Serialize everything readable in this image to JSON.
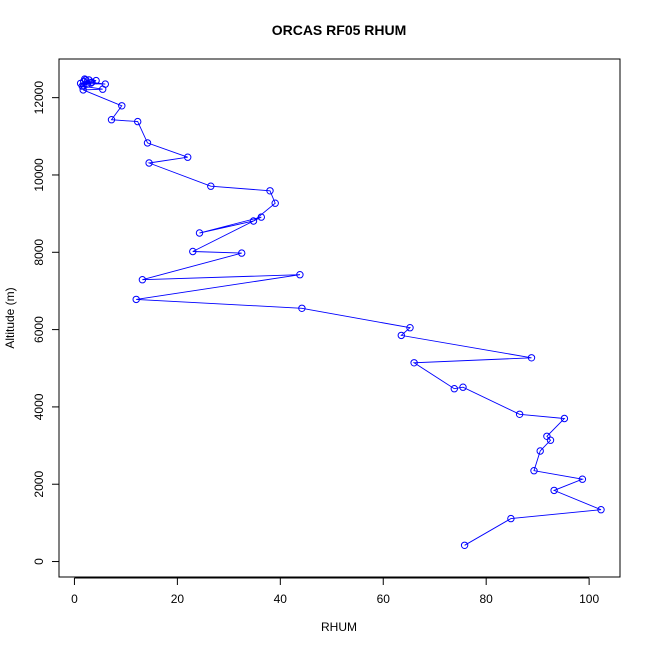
{
  "chart_data": {
    "type": "line",
    "title": "ORCAS RF05 RHUM",
    "xlabel": "RHUM",
    "ylabel": "Altitude (m)",
    "xlim": [
      -3,
      106
    ],
    "ylim": [
      -400,
      13000
    ],
    "xticks": [
      0,
      20,
      40,
      60,
      80,
      100
    ],
    "yticks": [
      0,
      2000,
      4000,
      6000,
      8000,
      10000,
      12000
    ],
    "grid": false,
    "legend": "none",
    "series_color": "#0000ff",
    "x": [
      75.8,
      84.8,
      102.3,
      93.2,
      98.7,
      89.3,
      90.5,
      92.5,
      91.8,
      95.2,
      86.5,
      75.5,
      73.8,
      66.0,
      88.8,
      63.5,
      65.2,
      44.2,
      12.0,
      43.8,
      13.2,
      32.5,
      23.0,
      36.3,
      24.3,
      34.8,
      39.0,
      38.0,
      26.5,
      14.5,
      22.0,
      14.2,
      12.3,
      7.2,
      9.2,
      1.7,
      5.5,
      1.5,
      1.2,
      6.0,
      1.8,
      3.2,
      2.2,
      4.2,
      1.8,
      2.0,
      3.4,
      2.5,
      2.8
    ],
    "y": [
      420,
      1110,
      1340,
      1840,
      2130,
      2350,
      2860,
      3140,
      3240,
      3700,
      3810,
      4510,
      4470,
      5140,
      5270,
      5850,
      6050,
      6550,
      6780,
      7420,
      7290,
      7980,
      8020,
      8910,
      8500,
      8810,
      9270,
      9590,
      9710,
      10310,
      10460,
      10830,
      11380,
      11430,
      11790,
      12200,
      12220,
      12300,
      12370,
      12350,
      12420,
      12380,
      12460,
      12440,
      12310,
      12480,
      12400,
      12350,
      12460
    ]
  }
}
